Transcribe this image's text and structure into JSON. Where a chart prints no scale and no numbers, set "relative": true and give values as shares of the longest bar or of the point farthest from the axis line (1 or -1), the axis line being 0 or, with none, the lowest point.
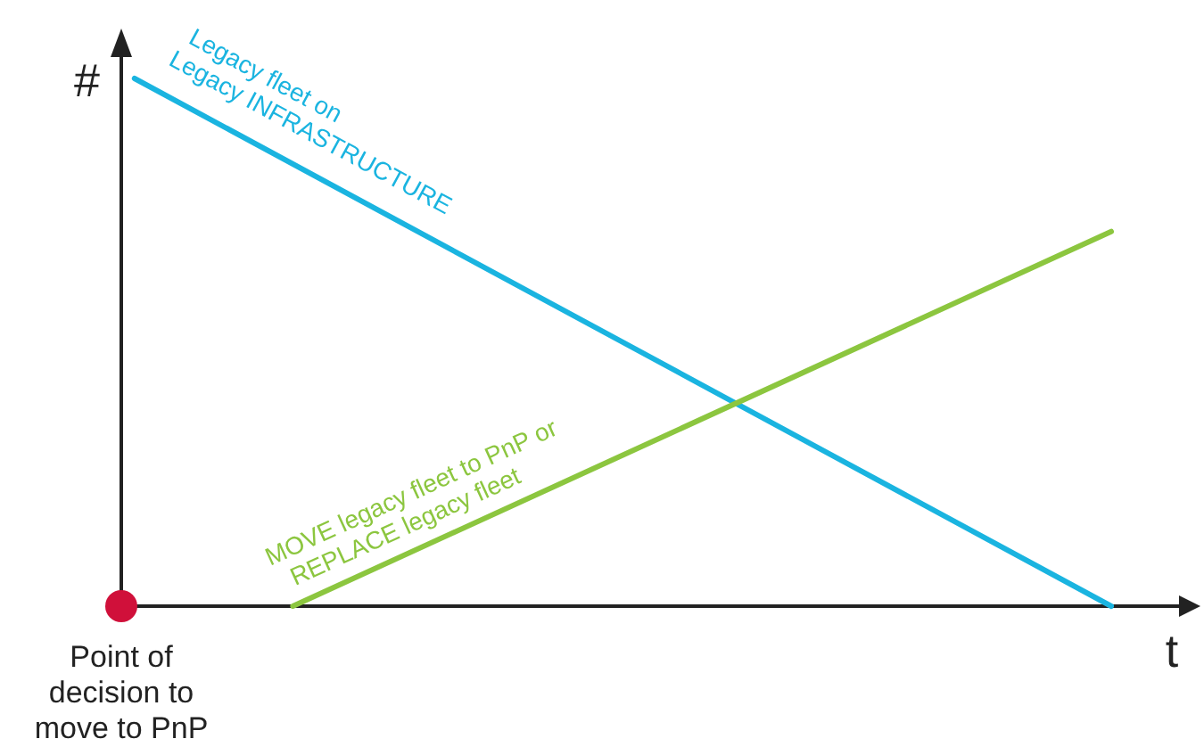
{
  "chart_data": {
    "type": "line",
    "relative": true,
    "xlabel": "t",
    "ylabel": "#",
    "categories": [
      null,
      null,
      null,
      null,
      null,
      null,
      null,
      null,
      null,
      null,
      null,
      null,
      null,
      null,
      null,
      null,
      null,
      null,
      null,
      null,
      null,
      null,
      null,
      null,
      null,
      null,
      null,
      null,
      null,
      null,
      null,
      null,
      null,
      null,
      null,
      null,
      null,
      null,
      null,
      null
    ],
    "series": [
      {
        "name": "Legacy fleet on\nLegacy INFRASTRUCTURE",
        "color": "#1ab4e0",
        "values": [
          1,
          null,
          null,
          null,
          null,
          null,
          null,
          null,
          null,
          null,
          null,
          null,
          null,
          null,
          null,
          null,
          null,
          null,
          null,
          null,
          null,
          null,
          null,
          null,
          null,
          null,
          null,
          null,
          null,
          null,
          null,
          null,
          null,
          null,
          null,
          null,
          null,
          0,
          null,
          null
        ]
      },
      {
        "name": "MOVE legacy fleet to PnP or\nREPLACE legacy fleet",
        "color": "#8cc63f",
        "values": [
          null,
          null,
          null,
          null,
          null,
          null,
          0,
          null,
          null,
          null,
          null,
          null,
          null,
          null,
          null,
          null,
          null,
          null,
          null,
          null,
          null,
          null,
          null,
          null,
          null,
          null,
          null,
          null,
          null,
          null,
          null,
          null,
          null,
          null,
          null,
          null,
          null,
          0.71,
          null,
          null
        ]
      }
    ],
    "annotations": [
      "Point of\ndecision to\nmove to PnP"
    ],
    "marker": "none",
    "line_style": "solid"
  }
}
